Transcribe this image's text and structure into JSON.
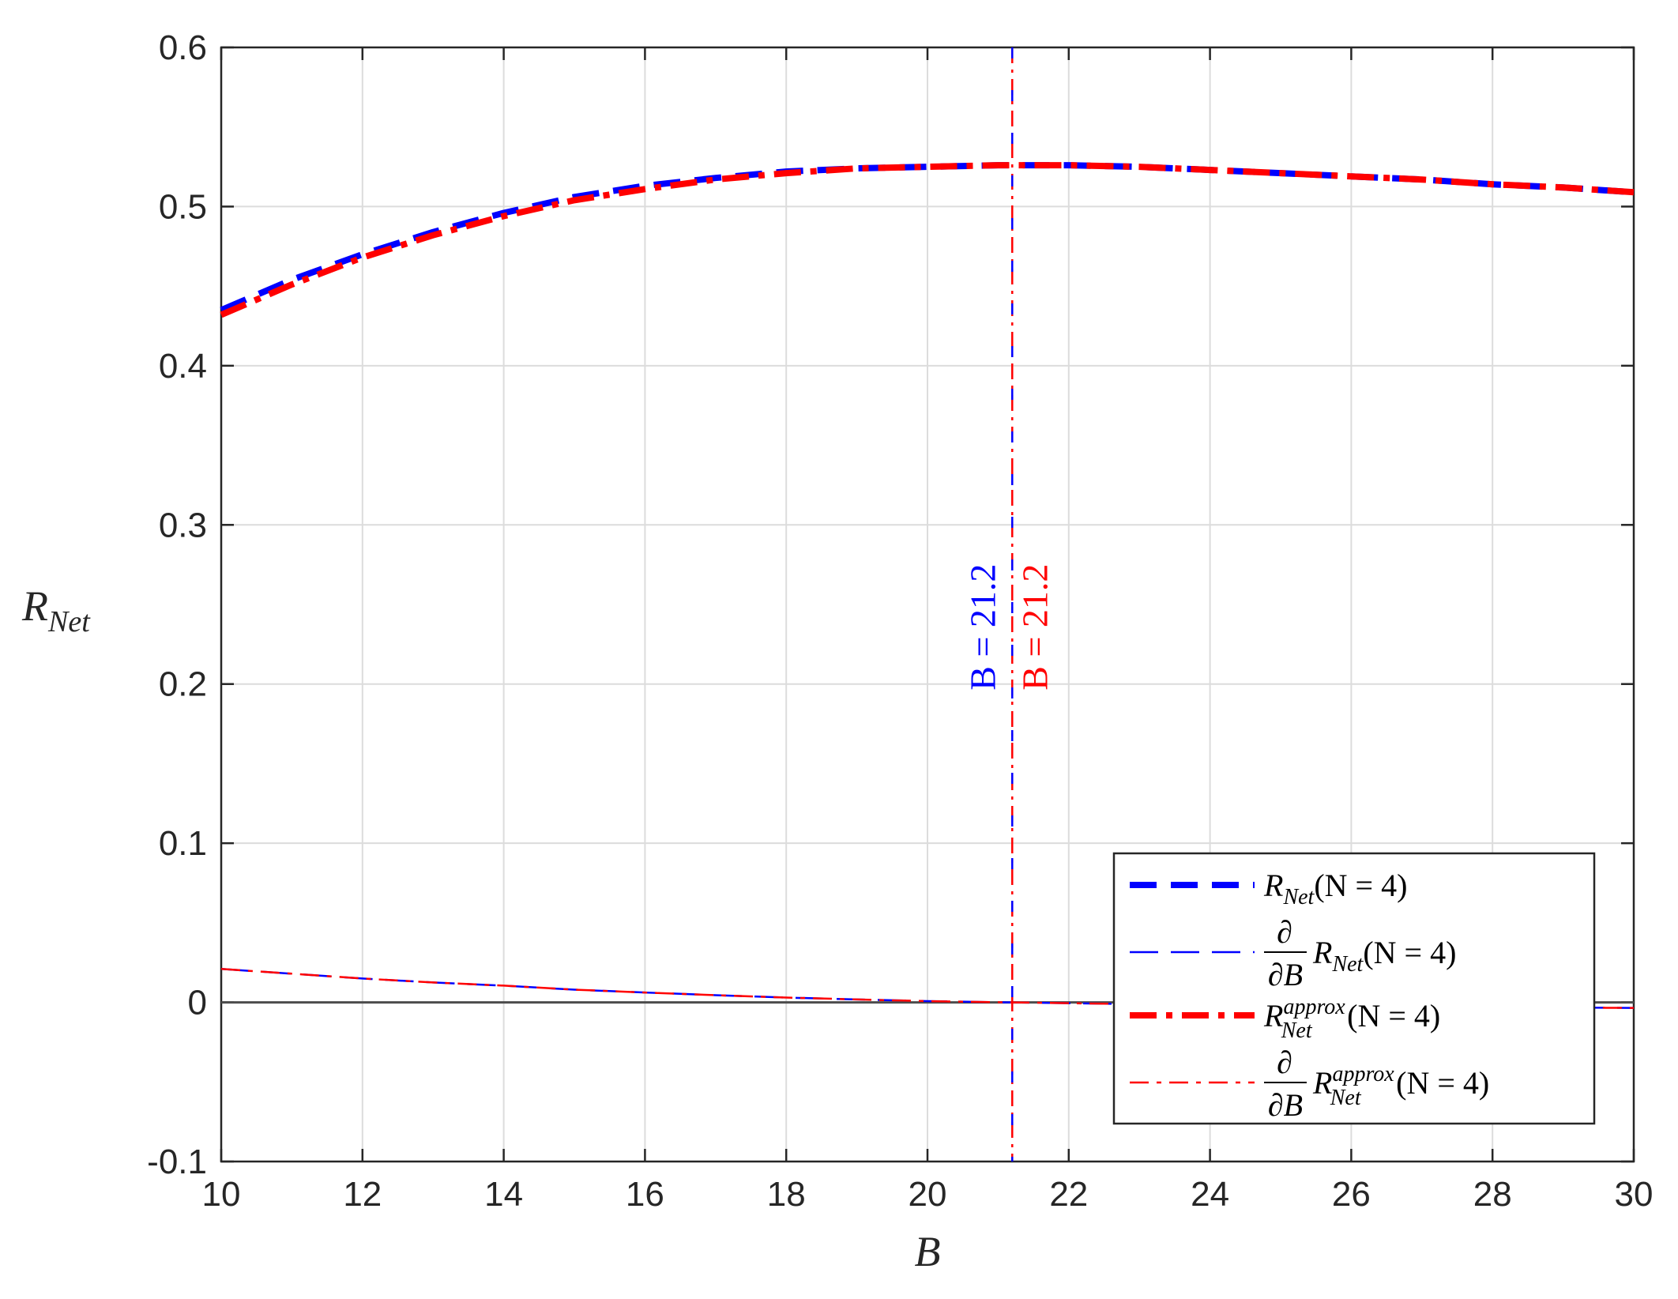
{
  "chart_data": {
    "type": "line",
    "xlabel": "B",
    "ylabel": "R",
    "ylabel_sub": "Net",
    "xlim": [
      10,
      30
    ],
    "ylim": [
      -0.1,
      0.6
    ],
    "xticks": [
      10,
      12,
      14,
      16,
      18,
      20,
      22,
      24,
      26,
      28,
      30
    ],
    "yticks": [
      -0.1,
      0,
      0.1,
      0.2,
      0.3,
      0.4,
      0.5,
      0.6
    ],
    "xtick_labels": [
      "10",
      "12",
      "14",
      "16",
      "18",
      "20",
      "22",
      "24",
      "26",
      "28",
      "30"
    ],
    "ytick_labels": [
      "-0.1",
      "0",
      "0.1",
      "0.2",
      "0.3",
      "0.4",
      "0.5",
      "0.6"
    ],
    "grid": true,
    "legend_position": "bottom-right",
    "x": [
      10,
      11,
      12,
      13,
      14,
      15,
      16,
      17,
      18,
      19,
      20,
      21,
      21.2,
      22,
      23,
      24,
      25,
      26,
      27,
      28,
      29,
      30
    ],
    "series": [
      {
        "name": "R_Net(N = 4)",
        "color": "#0000ff",
        "style": "dashed-thick",
        "values": [
          0.435,
          0.454,
          0.47,
          0.484,
          0.496,
          0.506,
          0.513,
          0.518,
          0.522,
          0.524,
          0.525,
          0.526,
          0.526,
          0.526,
          0.525,
          0.523,
          0.521,
          0.519,
          0.517,
          0.514,
          0.512,
          0.509
        ]
      },
      {
        "name": "∂/∂B R_Net(N = 4)",
        "color": "#0000ff",
        "style": "dashed-thin",
        "values": [
          0.021,
          0.018,
          0.015,
          0.0125,
          0.0105,
          0.008,
          0.0062,
          0.0045,
          0.003,
          0.0018,
          0.0008,
          0.0001,
          0.0,
          -0.0005,
          -0.0011,
          -0.0016,
          -0.002,
          -0.0024,
          -0.0028,
          -0.003,
          -0.0033,
          -0.0035
        ]
      },
      {
        "name": "R_Net^approx(N = 4)",
        "color": "#ff0000",
        "style": "dashdot-thick",
        "values": [
          0.432,
          0.451,
          0.468,
          0.482,
          0.494,
          0.504,
          0.511,
          0.517,
          0.521,
          0.524,
          0.525,
          0.526,
          0.526,
          0.526,
          0.525,
          0.523,
          0.521,
          0.519,
          0.517,
          0.514,
          0.512,
          0.509
        ]
      },
      {
        "name": "∂/∂B R_Net^approx(N = 4)",
        "color": "#ff0000",
        "style": "dashdot-thin",
        "values": [
          0.021,
          0.018,
          0.015,
          0.0125,
          0.0105,
          0.008,
          0.0062,
          0.0045,
          0.003,
          0.0018,
          0.0008,
          0.0001,
          0.0,
          -0.0005,
          -0.0011,
          -0.0016,
          -0.002,
          -0.0024,
          -0.0028,
          -0.003,
          -0.0033,
          -0.0035
        ]
      }
    ],
    "vertical_lines": [
      {
        "x": 21.2,
        "color": "#ff0000",
        "style": "dashdot"
      },
      {
        "x": 21.2,
        "color": "#0000ff",
        "style": "dashed"
      }
    ],
    "annotations": [
      {
        "text": "B = 21.2",
        "color": "#0000ff"
      },
      {
        "text": "B = 21.2",
        "color": "#ff0000"
      }
    ],
    "legend": {
      "entries": [
        {
          "main": "R",
          "sub": "Net",
          "sup": "",
          "prefix": "",
          "suffix": "(N = 4)"
        },
        {
          "main": "R",
          "sub": "Net",
          "sup": "",
          "prefix": "∂/∂B",
          "suffix": "(N = 4)"
        },
        {
          "main": "R",
          "sub": "Net",
          "sup": "approx",
          "prefix": "",
          "suffix": "(N = 4)"
        },
        {
          "main": "R",
          "sub": "Net",
          "sup": "approx",
          "prefix": "∂/∂B",
          "suffix": "(N = 4)"
        }
      ],
      "fraction_numerator": "∂",
      "fraction_denominator": "∂B"
    }
  }
}
